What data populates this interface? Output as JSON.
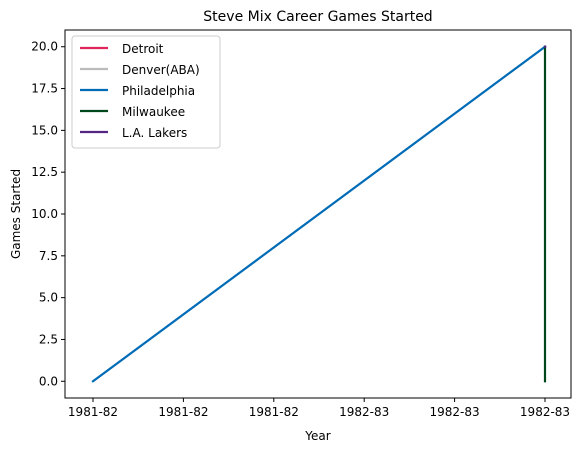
{
  "chart_data": {
    "type": "line",
    "title": "Steve Mix Career Games Started",
    "xlabel": "Year",
    "ylabel": "Games Started",
    "x_tick_labels": [
      "1981-82",
      "1981-82",
      "1981-82",
      "1982-83",
      "1982-83",
      "1982-83"
    ],
    "x_range": [
      0,
      1
    ],
    "y_ticks": [
      "0.0",
      "2.5",
      "5.0",
      "7.5",
      "10.0",
      "12.5",
      "15.0",
      "17.5",
      "20.0"
    ],
    "ylim": [
      -1,
      21
    ],
    "legend_position": "top-left",
    "grid": false,
    "series": [
      {
        "name": "Detroit",
        "color": "#e0245e",
        "points": [
          [
            1,
            20
          ],
          [
            1,
            20
          ]
        ]
      },
      {
        "name": "Denver(ABA)",
        "color": "#bbbbbb",
        "points": [
          [
            1,
            20
          ],
          [
            1,
            20
          ]
        ]
      },
      {
        "name": "Philadelphia",
        "color": "#006bb6",
        "points": [
          [
            0,
            0
          ],
          [
            1,
            20
          ]
        ]
      },
      {
        "name": "Milwaukee",
        "color": "#00471b",
        "points": [
          [
            1,
            20
          ],
          [
            1,
            0
          ]
        ]
      },
      {
        "name": "L.A. Lakers",
        "color": "#552583",
        "points": [
          [
            1,
            20
          ],
          [
            1,
            20
          ]
        ]
      }
    ]
  }
}
